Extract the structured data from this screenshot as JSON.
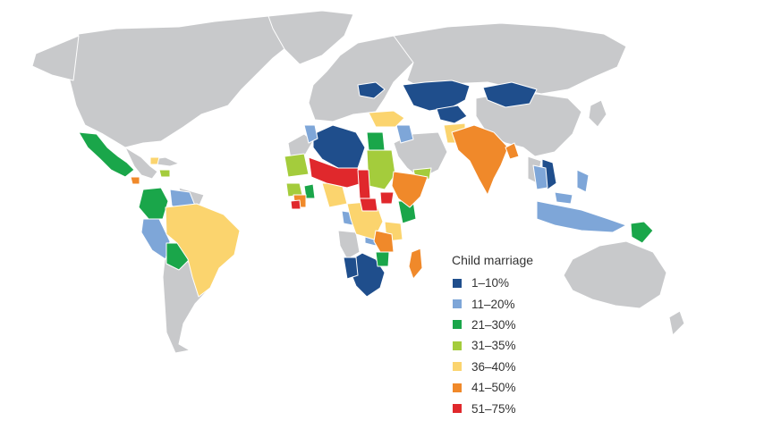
{
  "legend": {
    "title": "Child marriage",
    "items": [
      {
        "label": "1–10%",
        "color": "#1f4e8c"
      },
      {
        "label": "11–20%",
        "color": "#7ea6d8"
      },
      {
        "label": "21–30%",
        "color": "#1aa64a"
      },
      {
        "label": "31–35%",
        "color": "#a4cc3c"
      },
      {
        "label": "36–40%",
        "color": "#fbd46e"
      },
      {
        "label": "41–50%",
        "color": "#f0892a"
      },
      {
        "label": "51–75%",
        "color": "#e0282c"
      }
    ]
  },
  "colors": {
    "no_data": "#c8c9cb",
    "background": "#ffffff"
  }
}
